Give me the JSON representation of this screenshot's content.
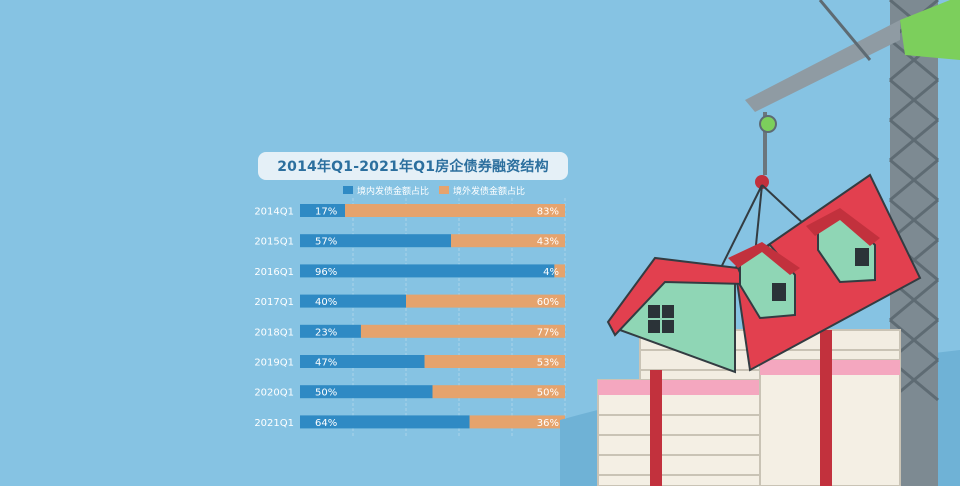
{
  "chart_data": {
    "type": "bar",
    "orientation": "horizontal",
    "stacked": true,
    "title": "2014年Q1-2021年Q1房企债券融资结构",
    "categories": [
      "2014Q1",
      "2015Q1",
      "2016Q1",
      "2017Q1",
      "2018Q1",
      "2019Q1",
      "2020Q1",
      "2021Q1"
    ],
    "series": [
      {
        "name": "境内发债金额占比",
        "values": [
          17,
          57,
          96,
          40,
          23,
          47,
          50,
          64
        ],
        "labels": [
          "17%",
          "57%",
          "96%",
          "40%",
          "23%",
          "47%",
          "50%",
          "64%"
        ],
        "color": "#2f8ac4"
      },
      {
        "name": "境外发债金额占比",
        "values": [
          83,
          43,
          4,
          60,
          77,
          53,
          50,
          36
        ],
        "labels": [
          "83%",
          "43%",
          "4%",
          "60%",
          "77%",
          "53%",
          "50%",
          "36%"
        ],
        "color": "#e5a36d"
      }
    ],
    "xlim": [
      0,
      100
    ],
    "grid": true,
    "legend_position": "top"
  },
  "colors": {
    "background": "#86c3e3",
    "domestic": "#2f8ac4",
    "overseas": "#e5a36d",
    "roof": "#e2404f",
    "house_wall": "#8fd6b5",
    "crane": "#7d8a92",
    "crane_cab": "#7ccf5c",
    "money_band": "#c2313d"
  },
  "illustration": {
    "icons": [
      "crane-icon",
      "house-icon",
      "money-stack-icon"
    ]
  }
}
